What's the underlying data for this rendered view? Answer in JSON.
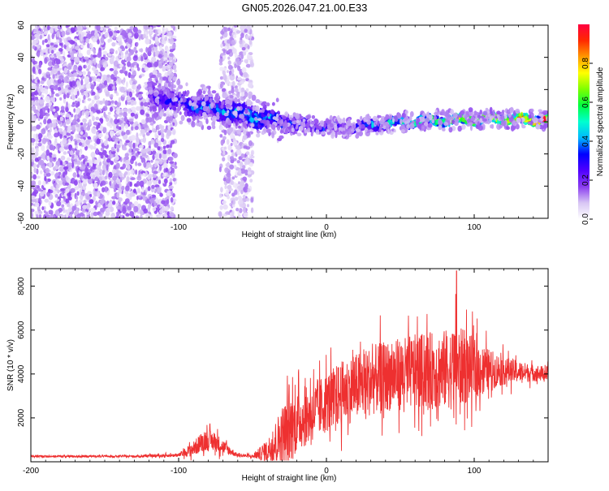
{
  "title": "GN05.2026.047.21.00.E33",
  "chart_data": [
    {
      "type": "heatmap",
      "xlabel": "Height of straight line (km)",
      "ylabel": "Frequency (Hz)",
      "xlim": [
        -200,
        150
      ],
      "ylim": [
        -60,
        60
      ],
      "xticks": [
        -200,
        -100,
        0,
        100
      ],
      "yticks": [
        -60,
        -40,
        -20,
        0,
        20,
        40,
        60
      ],
      "colorbar": {
        "label": "Normalized spectral amplitude",
        "range": [
          0,
          1
        ],
        "ticks": [
          "0.0",
          "0.2",
          "0.4",
          "0.6",
          "0.8"
        ],
        "tick_values": [
          0,
          0.2,
          0.4,
          0.6,
          0.8
        ],
        "colors": [
          "#ffffff",
          "#d8c6f4",
          "#8a3df0",
          "#5000ff",
          "#0000ff",
          "#00b8ff",
          "#00ffd0",
          "#00ff40",
          "#7dff00",
          "#ffff00",
          "#ff9900",
          "#ff2a00",
          "#ff0040"
        ]
      },
      "regions": [
        {
          "name": "noise-left",
          "x": [
            -200,
            -102
          ],
          "f": [
            -60,
            60
          ],
          "amplitude": 0.12
        },
        {
          "name": "noise-band",
          "x": [
            -72,
            -50
          ],
          "f": [
            -60,
            60
          ],
          "amplitude": 0.1
        },
        {
          "name": "signal-trace",
          "x": [
            -120,
            150
          ],
          "f_center": [
            16,
            10,
            4,
            -2,
            -4,
            0,
            1,
            2,
            1
          ],
          "amplitude": [
            0.2,
            0.3,
            0.35,
            0.3,
            0.25,
            0.45,
            0.55,
            0.6,
            0.85
          ]
        }
      ]
    },
    {
      "type": "line",
      "xlabel": "Height of straight line (km)",
      "ylabel": "SNR (10 * v/v)",
      "xlim": [
        -200,
        150
      ],
      "ylim": [
        0,
        8800
      ],
      "xticks": [
        -200,
        -100,
        0,
        100
      ],
      "yticks": [
        2000,
        4000,
        6000,
        8000
      ],
      "color": "#ee3030",
      "envelope": {
        "x": [
          -200,
          -130,
          -100,
          -90,
          -82,
          -75,
          -68,
          -60,
          -50,
          -40,
          -30,
          -25,
          -20,
          -10,
          0,
          10,
          20,
          30,
          40,
          50,
          60,
          70,
          80,
          88,
          95,
          100,
          110,
          120,
          130,
          140,
          150
        ],
        "base": [
          250,
          250,
          300,
          600,
          1000,
          900,
          600,
          300,
          250,
          500,
          1200,
          1500,
          1800,
          2200,
          2700,
          3100,
          3400,
          3700,
          3900,
          4000,
          4100,
          4150,
          4200,
          4300,
          4300,
          4200,
          4200,
          4150,
          4100,
          4050,
          4000
        ],
        "amp": [
          80,
          80,
          150,
          600,
          900,
          800,
          500,
          120,
          150,
          900,
          2500,
          3000,
          2500,
          2400,
          2500,
          2700,
          2800,
          2900,
          2900,
          3000,
          3100,
          3200,
          3300,
          3500,
          3000,
          2600,
          1700,
          1200,
          900,
          700,
          600
        ]
      },
      "peak": {
        "x": 88,
        "y": 8700
      }
    }
  ]
}
